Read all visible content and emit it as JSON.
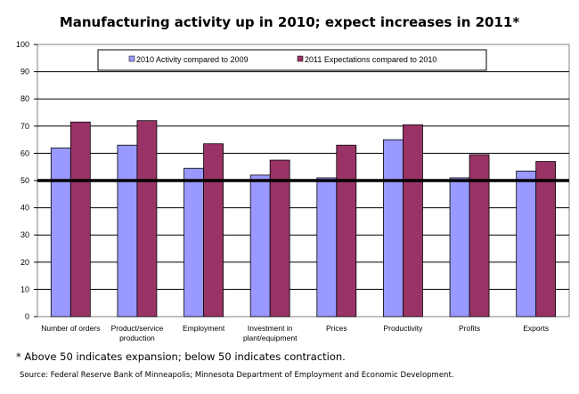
{
  "chart_data": {
    "type": "bar",
    "title": "Manufacturing activity up in 2010;  expect increases in 2011*",
    "xlabel": "",
    "ylabel": "",
    "ylim": [
      0,
      100
    ],
    "yticks": [
      0,
      10,
      20,
      30,
      40,
      50,
      60,
      70,
      80,
      90,
      100
    ],
    "grid": true,
    "legend_position": "top",
    "reference_line": 50,
    "categories": [
      [
        "Number of orders"
      ],
      [
        "Product/service",
        "production"
      ],
      [
        "Employment"
      ],
      [
        "Investment in",
        "plant/equipment"
      ],
      [
        "Prices"
      ],
      [
        "Productivity"
      ],
      [
        "Profits"
      ],
      [
        "Exports"
      ]
    ],
    "series": [
      {
        "name": "2010 Activity compared to 2009",
        "color": "#9999ff",
        "values": [
          62,
          63,
          54.5,
          52,
          51,
          65,
          51,
          53.5
        ]
      },
      {
        "name": "2011 Expectations compared to 2010",
        "color": "#993366",
        "values": [
          71.5,
          72,
          63.5,
          57.5,
          63,
          70.5,
          59.5,
          57
        ]
      }
    ]
  },
  "footnote": "* Above 50 indicates expansion; below 50 indicates contraction.",
  "source": "Source: Federal Reserve Bank of Minneapolis;  Minnesota Department of Employment and Economic Development."
}
